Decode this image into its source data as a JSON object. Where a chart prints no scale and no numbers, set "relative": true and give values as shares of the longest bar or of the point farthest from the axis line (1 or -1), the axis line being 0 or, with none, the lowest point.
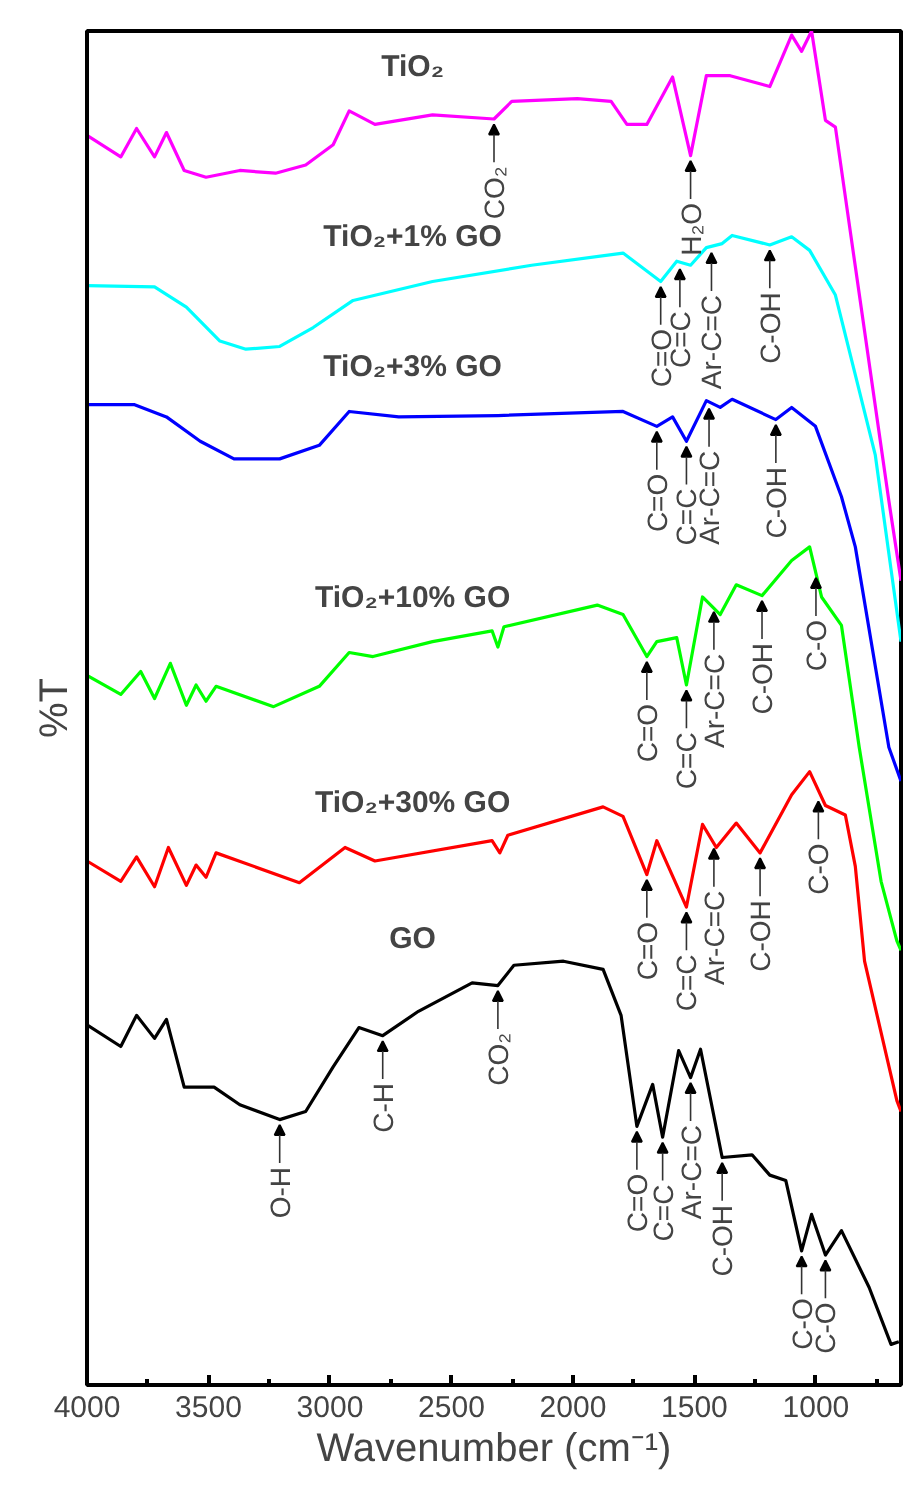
{
  "chart_data": {
    "type": "line",
    "relative": true,
    "xlabel": "Wavenumber (cm⁻¹)",
    "ylabel": "%T",
    "xlim": [
      4000,
      650
    ],
    "xticks": [
      4000,
      {
        "value": 3750,
        "label": null
      },
      3500,
      {
        "value": 3250,
        "label": null
      },
      3000,
      {
        "value": 2750,
        "label": null
      },
      2500,
      {
        "value": 2250,
        "label": null
      },
      2000,
      {
        "value": 1750,
        "label": null
      },
      1500,
      {
        "value": 1250,
        "label": null
      },
      1000,
      {
        "value": 750,
        "label": null
      }
    ],
    "grid": false,
    "marker": "none",
    "line_style": "solid",
    "series": [
      {
        "name": "TiO₂",
        "color": "#ff00ff",
        "x": [
          4000,
          3861,
          3796,
          3722,
          3673,
          3600,
          3510,
          3371,
          3224,
          3100,
          2987,
          2921,
          2815,
          2578,
          2325,
          2252,
          1982,
          1843,
          1778,
          1696,
          1590,
          1516,
          1451,
          1353,
          1190,
          1100,
          1059,
          1018,
          961,
          920,
          838,
          700,
          650
        ],
        "values": [
          0.923,
          0.907,
          0.928,
          0.907,
          0.925,
          0.897,
          0.892,
          0.897,
          0.895,
          0.901,
          0.916,
          0.941,
          0.931,
          0.938,
          0.935,
          0.948,
          0.95,
          0.948,
          0.931,
          0.931,
          0.966,
          0.908,
          0.967,
          0.967,
          0.959,
          0.997,
          0.985,
          1.0,
          0.934,
          0.929,
          0.826,
          0.653,
          0.594
        ]
      },
      {
        "name": "TiO₂+1% GO",
        "color": "#00ffff",
        "x": [
          4000,
          3722,
          3591,
          3453,
          3346,
          3207,
          3069,
          2905,
          2578,
          2170,
          1794,
          1639,
          1573,
          1516,
          1451,
          1386,
          1345,
          1190,
          1100,
          1026,
          920,
          838,
          756,
          650
        ],
        "values": [
          0.812,
          0.811,
          0.796,
          0.771,
          0.765,
          0.767,
          0.781,
          0.801,
          0.815,
          0.827,
          0.836,
          0.815,
          0.83,
          0.827,
          0.84,
          0.843,
          0.849,
          0.842,
          0.848,
          0.838,
          0.805,
          0.746,
          0.687,
          0.549
        ]
      },
      {
        "name": "TiO₂+3% GO",
        "color": "#0000ff",
        "x": [
          4000,
          3804,
          3673,
          3534,
          3395,
          3207,
          3044,
          2921,
          2717,
          2309,
          1794,
          1655,
          1590,
          1533,
          1451,
          1394,
          1345,
          1165,
          1100,
          1002,
          895,
          838,
          700,
          650
        ],
        "values": [
          0.724,
          0.724,
          0.715,
          0.697,
          0.684,
          0.684,
          0.694,
          0.719,
          0.715,
          0.716,
          0.719,
          0.708,
          0.715,
          0.697,
          0.727,
          0.722,
          0.728,
          0.713,
          0.722,
          0.708,
          0.656,
          0.619,
          0.471,
          0.446
        ]
      },
      {
        "name": "TiO₂+10% GO",
        "color": "#00ff00",
        "x": [
          4000,
          3861,
          3779,
          3722,
          3657,
          3591,
          3551,
          3510,
          3469,
          3232,
          3044,
          2921,
          2823,
          2578,
          2333,
          2309,
          2284,
          1900,
          1794,
          1696,
          1655,
          1573,
          1533,
          1467,
          1394,
          1328,
          1222,
          1100,
          1026,
          977,
          895,
          822,
          732,
          667,
          650
        ],
        "values": [
          0.524,
          0.51,
          0.527,
          0.507,
          0.533,
          0.502,
          0.517,
          0.505,
          0.516,
          0.501,
          0.516,
          0.541,
          0.538,
          0.549,
          0.557,
          0.545,
          0.56,
          0.576,
          0.569,
          0.538,
          0.549,
          0.552,
          0.517,
          0.582,
          0.569,
          0.591,
          0.583,
          0.609,
          0.619,
          0.582,
          0.561,
          0.471,
          0.372,
          0.328,
          0.321
        ]
      },
      {
        "name": "TiO₂+30% GO",
        "color": "#ff0000",
        "x": [
          4000,
          3861,
          3796,
          3722,
          3665,
          3591,
          3551,
          3510,
          3469,
          3126,
          2938,
          2815,
          2333,
          2301,
          2268,
          1876,
          1794,
          1696,
          1655,
          1533,
          1467,
          1410,
          1328,
          1230,
          1100,
          1026,
          961,
          879,
          838,
          800,
          667,
          650
        ],
        "values": [
          0.387,
          0.372,
          0.39,
          0.368,
          0.397,
          0.369,
          0.384,
          0.375,
          0.393,
          0.371,
          0.397,
          0.387,
          0.402,
          0.393,
          0.406,
          0.427,
          0.42,
          0.377,
          0.402,
          0.353,
          0.414,
          0.397,
          0.415,
          0.393,
          0.436,
          0.453,
          0.428,
          0.421,
          0.383,
          0.313,
          0.21,
          0.202
        ]
      },
      {
        "name": "GO",
        "color": "#000000",
        "x": [
          4000,
          3861,
          3796,
          3722,
          3673,
          3600,
          3477,
          3371,
          3207,
          3100,
          2987,
          2881,
          2783,
          2636,
          2415,
          2309,
          2243,
          2039,
          1876,
          1802,
          1737,
          1672,
          1631,
          1565,
          1516,
          1475,
          1386,
          1263,
          1190,
          1124,
          1059,
          1018,
          961,
          895,
          781,
          691,
          659
        ],
        "values": [
          0.266,
          0.25,
          0.273,
          0.256,
          0.27,
          0.22,
          0.22,
          0.207,
          0.196,
          0.202,
          0.235,
          0.264,
          0.258,
          0.276,
          0.297,
          0.295,
          0.31,
          0.313,
          0.307,
          0.273,
          0.191,
          0.222,
          0.183,
          0.247,
          0.227,
          0.248,
          0.168,
          0.17,
          0.155,
          0.151,
          0.099,
          0.126,
          0.096,
          0.114,
          0.072,
          0.03,
          0.032
        ]
      }
    ],
    "annotations": [
      {
        "text": "CO₂",
        "x": 2325,
        "y": 0.935
      },
      {
        "text": "H₂O",
        "x": 1516,
        "y": 0.908
      },
      {
        "text": "C=O",
        "x": 1639,
        "y": 0.815
      },
      {
        "text": "C=C",
        "x": 1560,
        "y": 0.828
      },
      {
        "text": "Ar-C=C",
        "x": 1430,
        "y": 0.84
      },
      {
        "text": "C-OH",
        "x": 1190,
        "y": 0.842
      },
      {
        "text": "C=O",
        "x": 1655,
        "y": 0.708
      },
      {
        "text": "C=C",
        "x": 1533,
        "y": 0.697
      },
      {
        "text": "Ar-C=C",
        "x": 1440,
        "y": 0.725
      },
      {
        "text": "C-OH",
        "x": 1165,
        "y": 0.713
      },
      {
        "text": "C=O",
        "x": 1696,
        "y": 0.538
      },
      {
        "text": "C=C",
        "x": 1533,
        "y": 0.517
      },
      {
        "text": "Ar-C=C",
        "x": 1420,
        "y": 0.575
      },
      {
        "text": "C-OH",
        "x": 1222,
        "y": 0.583
      },
      {
        "text": "C-O",
        "x": 1000,
        "y": 0.6
      },
      {
        "text": "C=O",
        "x": 1696,
        "y": 0.377
      },
      {
        "text": "C=C",
        "x": 1533,
        "y": 0.353
      },
      {
        "text": "Ar-C=C",
        "x": 1420,
        "y": 0.4
      },
      {
        "text": "C-OH",
        "x": 1230,
        "y": 0.393
      },
      {
        "text": "C-O",
        "x": 990,
        "y": 0.435
      },
      {
        "text": "O-H",
        "x": 3207,
        "y": 0.196
      },
      {
        "text": "C-H",
        "x": 2783,
        "y": 0.258
      },
      {
        "text": "CO₂",
        "x": 2309,
        "y": 0.295
      },
      {
        "text": "C=O",
        "x": 1737,
        "y": 0.191
      },
      {
        "text": "C=C",
        "x": 1631,
        "y": 0.183
      },
      {
        "text": "Ar-C=C",
        "x": 1516,
        "y": 0.227
      },
      {
        "text": "C-OH",
        "x": 1386,
        "y": 0.168
      },
      {
        "text": "C-O",
        "x": 1059,
        "y": 0.099
      },
      {
        "text": "C-O",
        "x": 961,
        "y": 0.096
      }
    ]
  }
}
